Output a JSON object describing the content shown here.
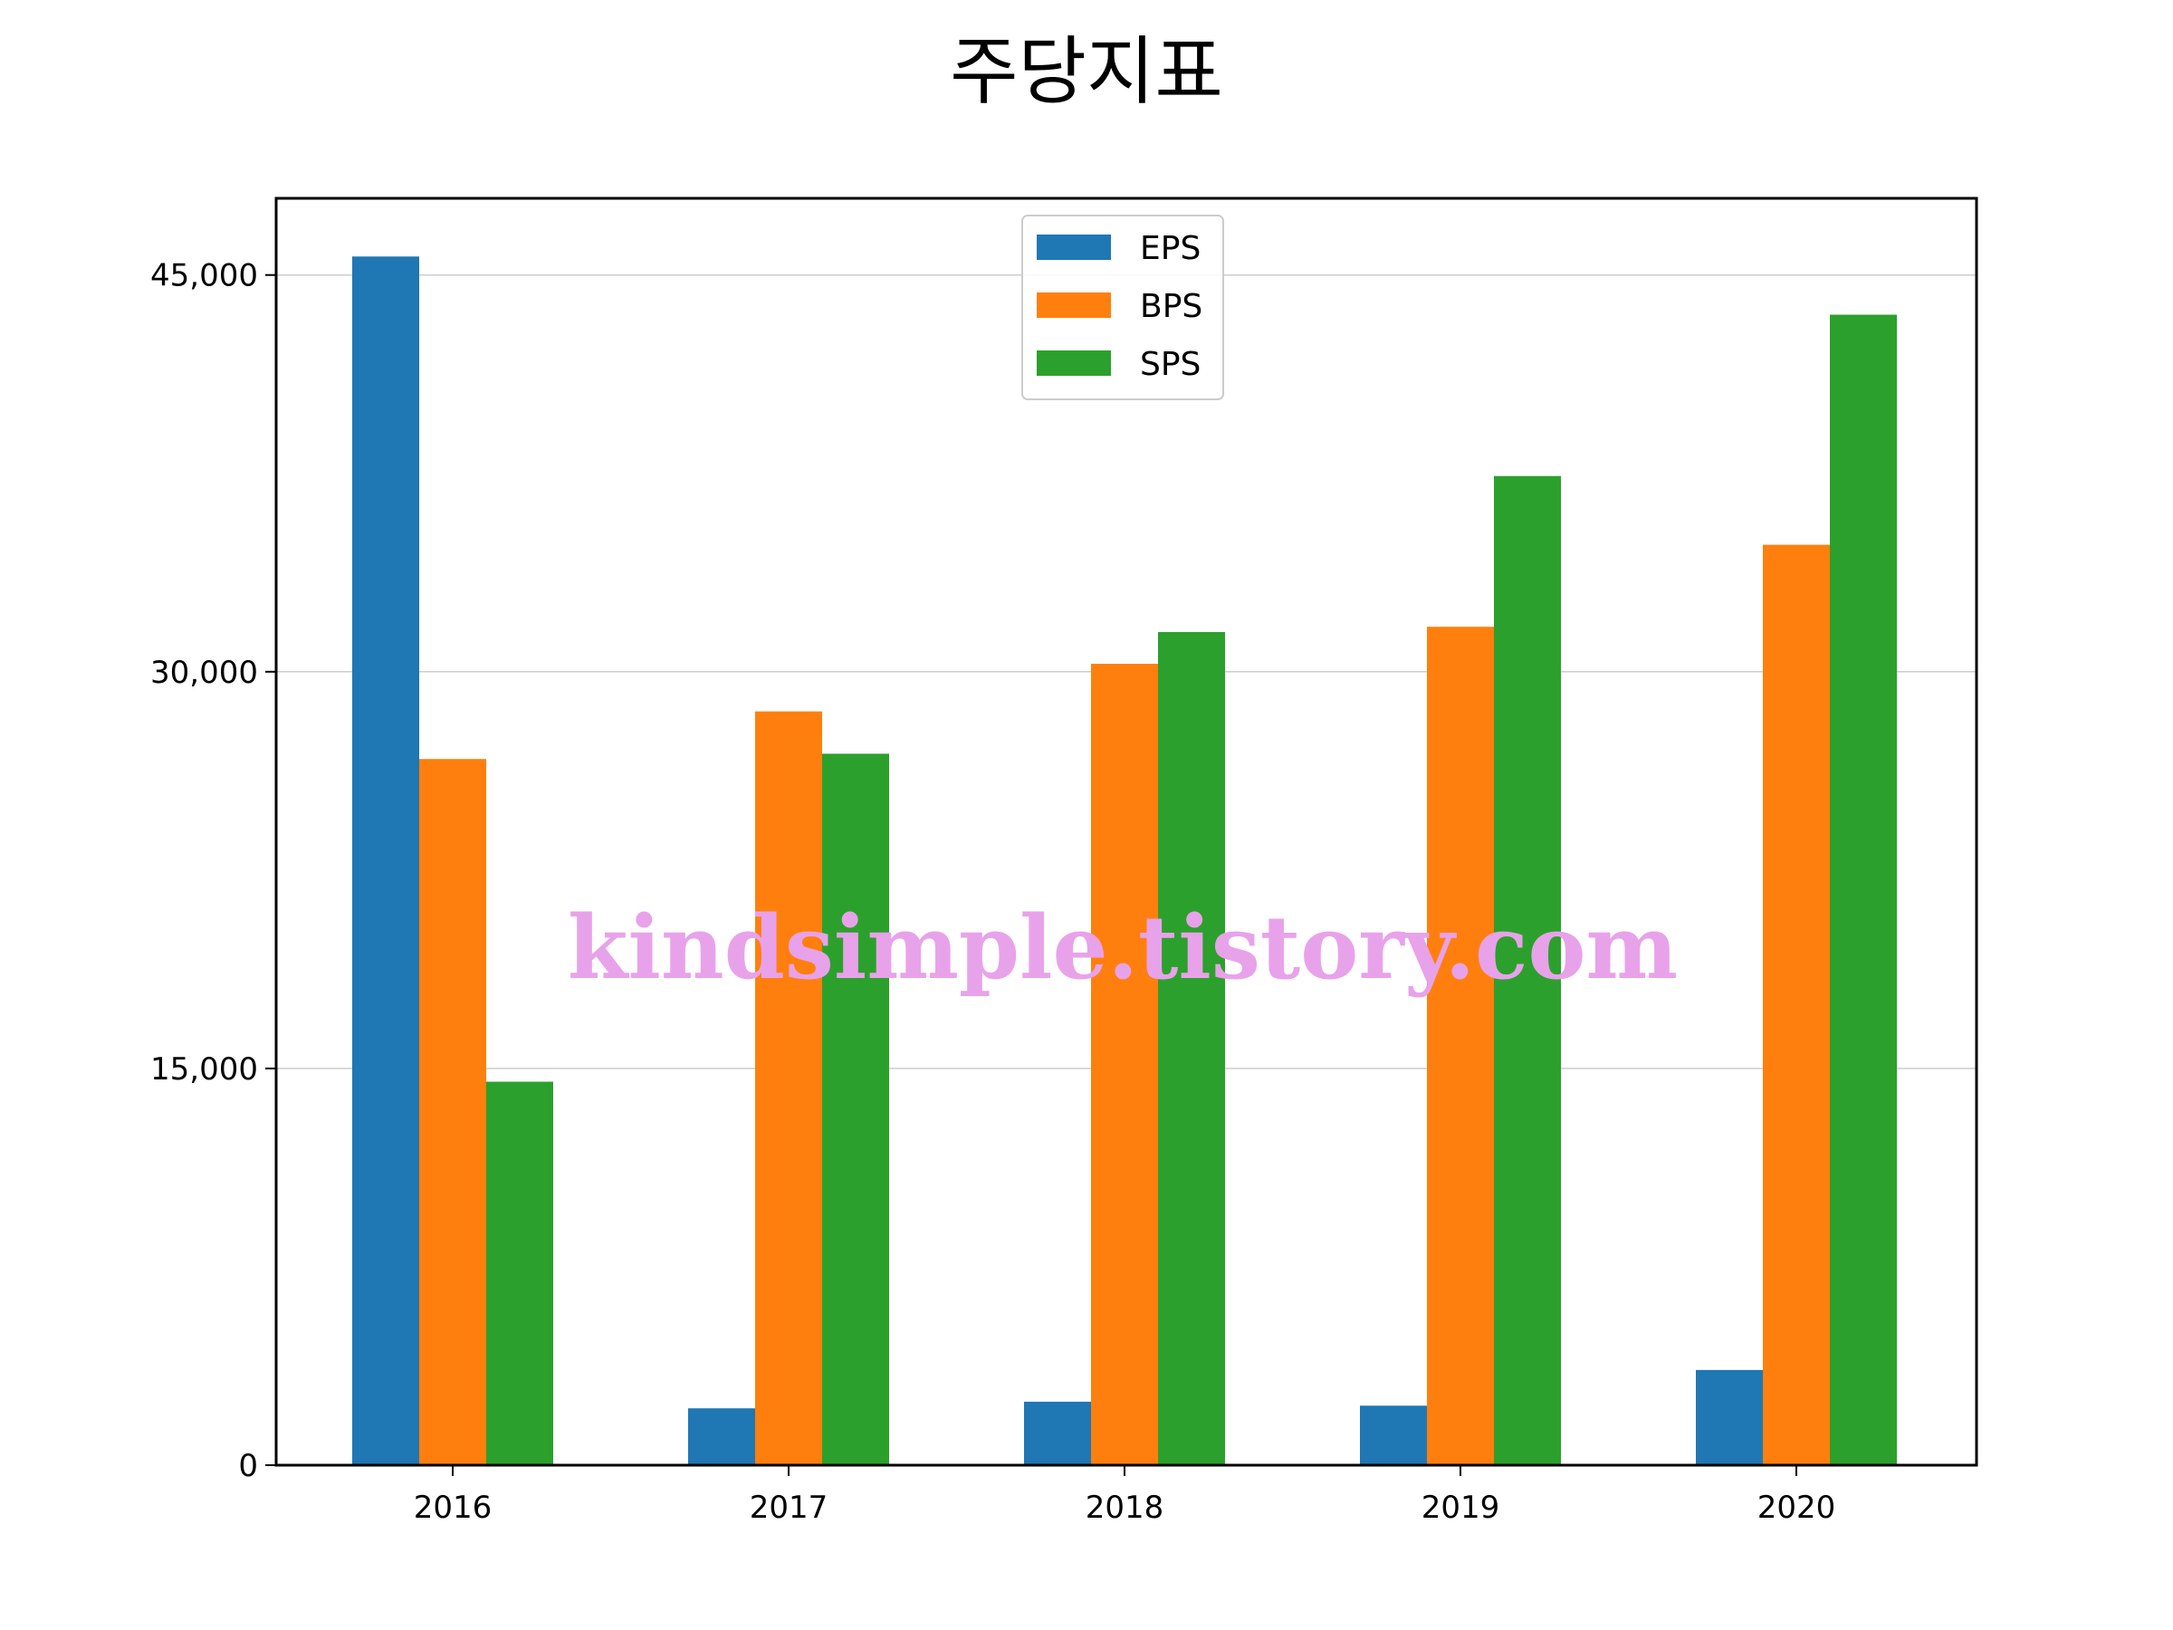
{
  "chart_data": {
    "type": "bar",
    "title": "주당지표",
    "categories": [
      "2016",
      "2017",
      "2018",
      "2019",
      "2020"
    ],
    "series": [
      {
        "name": "EPS",
        "color": "#1f77b4",
        "values": [
          45700,
          2150,
          2400,
          2250,
          3600
        ]
      },
      {
        "name": "BPS",
        "color": "#ff7f0e",
        "values": [
          26700,
          28500,
          30300,
          31700,
          34800
        ]
      },
      {
        "name": "SPS",
        "color": "#2ca02c",
        "values": [
          14500,
          26900,
          31500,
          37400,
          43500
        ]
      }
    ],
    "ylim": [
      0,
      47900
    ],
    "yticks": [
      0,
      15000,
      30000,
      45000
    ],
    "ytick_labels": [
      "0",
      "15,000",
      "30,000",
      "45,000"
    ],
    "grid": "horizontal",
    "legend_position": "top-center",
    "watermark": "kindsimple.tistory.com",
    "watermark_color": "#e8a2ea"
  }
}
